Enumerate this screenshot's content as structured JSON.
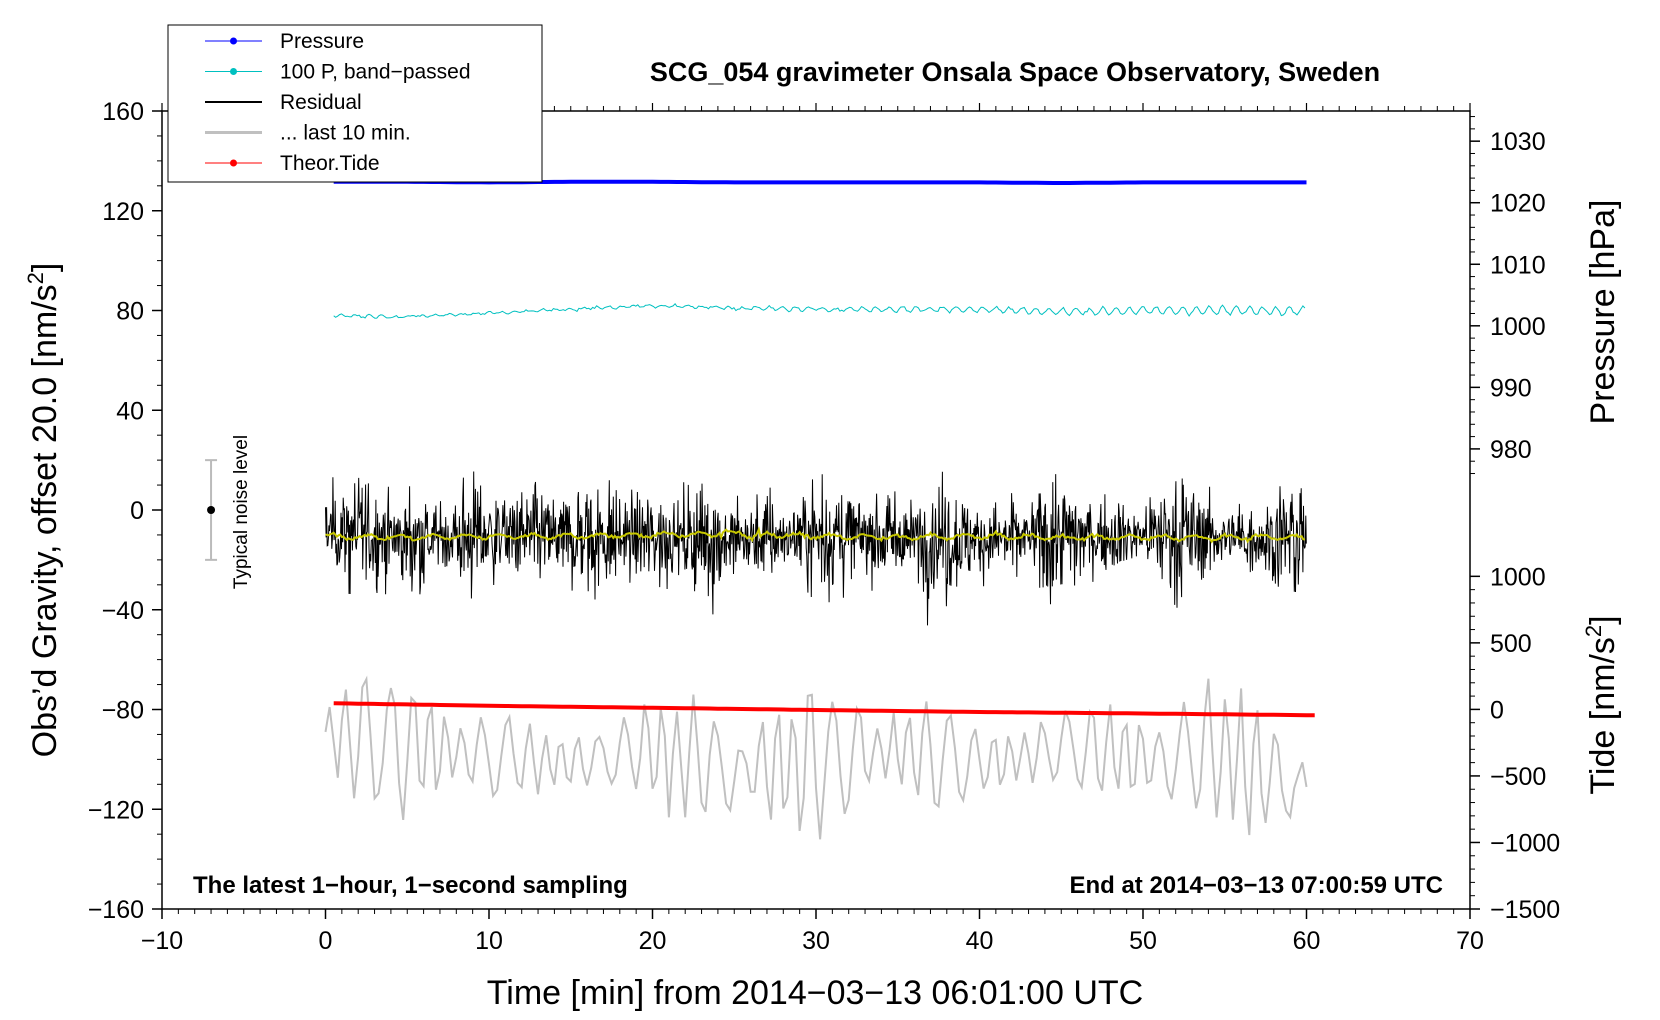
{
  "chart_data": {
    "type": "line",
    "title": "SCG_054 gravimeter Onsala Space Observatory, Sweden",
    "xlabel": "Time [min] from 2014−03−13 06:01:00 UTC",
    "ylabel_left": "Obs’d Gravity, offset 20.0 [nm/s",
    "ylabel_left_sup": "2",
    "ylabel_left_close": "]",
    "ylabel_right_pressure": "Pressure [hPa]",
    "ylabel_right_tide": "Tide [nm/s",
    "ylabel_right_tide_sup": "2",
    "ylabel_right_tide_close": "]",
    "xlim": [
      -10,
      70
    ],
    "ylim_left": [
      -160,
      160
    ],
    "x_ticks": [
      {
        "v": -10,
        "label": "−10"
      },
      {
        "v": 0,
        "label": "0"
      },
      {
        "v": 10,
        "label": "10"
      },
      {
        "v": 20,
        "label": "20"
      },
      {
        "v": 30,
        "label": "30"
      },
      {
        "v": 40,
        "label": "40"
      },
      {
        "v": 50,
        "label": "50"
      },
      {
        "v": 60,
        "label": "60"
      },
      {
        "v": 70,
        "label": "70"
      }
    ],
    "y_ticks_left": [
      {
        "v": 160,
        "label": "160"
      },
      {
        "v": 120,
        "label": "120"
      },
      {
        "v": 80,
        "label": "80"
      },
      {
        "v": 40,
        "label": "40"
      },
      {
        "v": 0,
        "label": "0"
      },
      {
        "v": -40,
        "label": "−40"
      },
      {
        "v": -80,
        "label": "−80"
      },
      {
        "v": -120,
        "label": "−120"
      },
      {
        "v": -160,
        "label": "−160"
      }
    ],
    "pressure_axis": {
      "ticks": [
        {
          "v": 1030,
          "label": "1030"
        },
        {
          "v": 1020,
          "label": "1020"
        },
        {
          "v": 1010,
          "label": "1010"
        },
        {
          "v": 1000,
          "label": "1000"
        },
        {
          "v": 990,
          "label": "990"
        },
        {
          "v": 980,
          "label": "980"
        }
      ],
      "map": {
        "p1": 1030,
        "y1": 147.9,
        "p2": 980,
        "y2": 24.5
      }
    },
    "tide_axis": {
      "ticks": [
        {
          "v": 1000,
          "label": "1000"
        },
        {
          "v": 500,
          "label": "500"
        },
        {
          "v": 0,
          "label": "0"
        },
        {
          "v": -500,
          "label": "−500"
        },
        {
          "v": -1000,
          "label": "−1000"
        },
        {
          "v": -1500,
          "label": "−1500"
        }
      ],
      "map": {
        "t1": 1000,
        "y1": -26.6,
        "t2": -1500,
        "y2": -160
      }
    },
    "series": [
      {
        "name": "Pressure",
        "color": "#0000ff",
        "x": [
          0.5,
          5,
          10,
          15,
          20,
          25,
          30,
          35,
          40,
          45,
          50,
          55,
          60
        ],
        "values": [
          1023.4,
          1023.4,
          1023.3,
          1023.4,
          1023.4,
          1023.3,
          1023.3,
          1023.3,
          1023.3,
          1023.2,
          1023.3,
          1023.3,
          1023.3
        ]
      },
      {
        "name": "100 P, band−passed",
        "color": "#00c0c0",
        "x": [
          0.5,
          5,
          10,
          15,
          20,
          25,
          30,
          35,
          40,
          45,
          50,
          55,
          60
        ],
        "values": [
          78,
          77.5,
          79,
          80.5,
          82,
          81,
          80.5,
          80.5,
          80.5,
          79.5,
          80,
          80,
          80
        ]
      },
      {
        "name": "Residual",
        "color": "#000000",
        "x": [
          0,
          5,
          10,
          15,
          20,
          25,
          30,
          35,
          40,
          45,
          50,
          55,
          60
        ],
        "values": [
          -8,
          -12,
          -10,
          -11,
          -11,
          -12,
          -10,
          -11,
          -12,
          -11,
          -10,
          -11,
          -12
        ],
        "noise_amplitude": 35
      },
      {
        "name": "... last 10 min.",
        "color": "#c0c0c0",
        "x": [
          0,
          5,
          10,
          15,
          20,
          25,
          30,
          35,
          40,
          45,
          50,
          55,
          60
        ],
        "values": [
          -89,
          -95,
          -98,
          -102,
          -95,
          -105,
          -100,
          -96,
          -102,
          -95,
          -100,
          -98,
          -114
        ],
        "amplitude_max": 35
      },
      {
        "name": "Residual smoothed",
        "color": "#c8c800",
        "x": [
          0,
          5,
          10,
          15,
          20,
          25,
          30,
          35,
          40,
          45,
          50,
          55,
          60
        ],
        "values": [
          -10.5,
          -11,
          -10.5,
          -10.5,
          -10,
          -9.5,
          -10.5,
          -11,
          -10.5,
          -11,
          -11,
          -11,
          -11
        ]
      },
      {
        "name": "Theor.Tide",
        "color": "#ff0000",
        "x": [
          0.5,
          10,
          20,
          30,
          40,
          50,
          60.5
        ],
        "values": [
          -77.5,
          -78.5,
          -79.3,
          -80.2,
          -81.0,
          -81.6,
          -82.3
        ]
      }
    ],
    "noise_indicator": {
      "x": -7,
      "center": 0,
      "half_range": 20,
      "label": "Typical noise level"
    },
    "legend": {
      "position": "top-left",
      "entries": [
        {
          "label": "Pressure",
          "color": "#0000ff",
          "marker": true
        },
        {
          "label": "100 P, band−passed",
          "color": "#00c0c0",
          "marker": true
        },
        {
          "label": "Residual",
          "color": "#000000",
          "marker": false
        },
        {
          "label": "... last 10 min.",
          "color": "#c0c0c0",
          "marker": false
        },
        {
          "label": "Theor.Tide",
          "color": "#ff0000",
          "marker": true
        }
      ]
    },
    "annotations": {
      "bottom_left": "The latest 1−hour, 1−second sampling",
      "bottom_right": "End at 2014−03−13 07:00:59 UTC"
    }
  }
}
